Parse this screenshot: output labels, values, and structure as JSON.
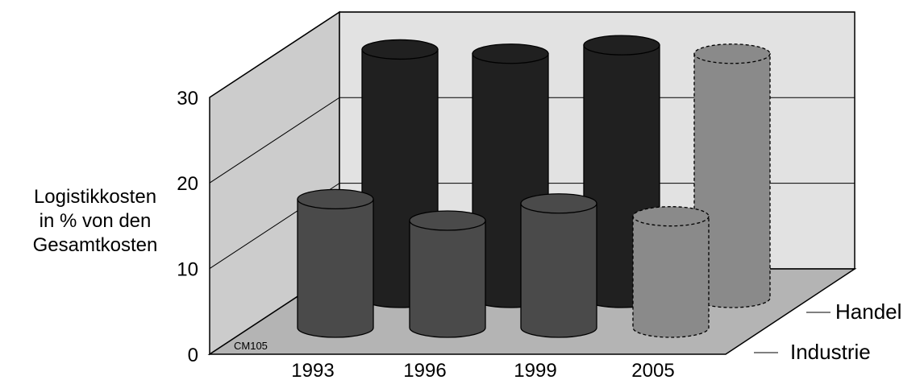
{
  "chart_data": {
    "type": "bar",
    "categories": [
      "1993",
      "1996",
      "1999",
      "2005"
    ],
    "series": [
      {
        "name": "Industrie",
        "values": [
          15,
          12.5,
          14.5,
          13
        ],
        "colors": [
          "#4a4a4a",
          "#4a4a4a",
          "#4a4a4a",
          "#8a8a8a"
        ]
      },
      {
        "name": "Handel",
        "values": [
          29,
          28.5,
          29.5,
          28.5
        ],
        "colors": [
          "#202020",
          "#202020",
          "#202020",
          "#8a8a8a"
        ]
      }
    ],
    "ylabel_lines": [
      "Logistikkosten",
      "in % von den",
      "Gesamtkosten"
    ],
    "yticks": [
      0,
      10,
      20,
      30
    ],
    "ylim": [
      0,
      35
    ],
    "grid": true,
    "watermark": "CM105"
  }
}
